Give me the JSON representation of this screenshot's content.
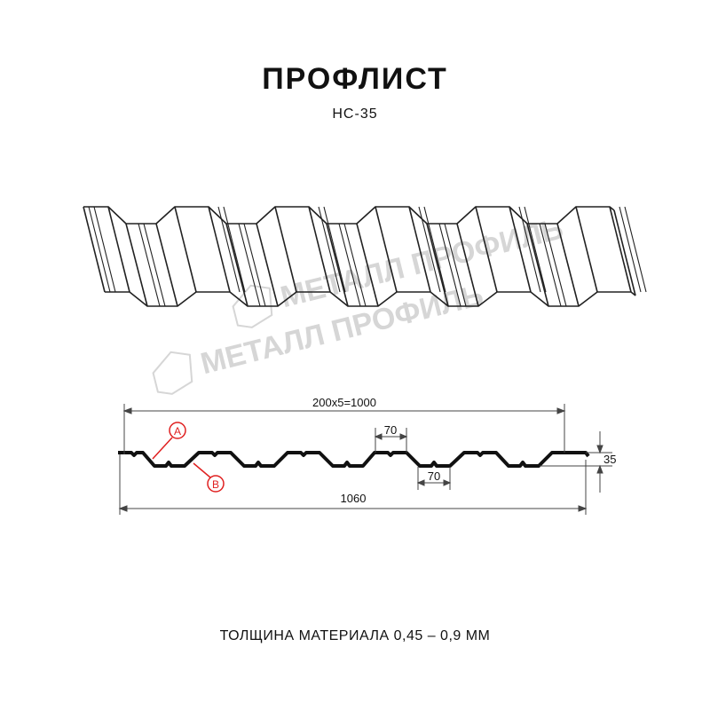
{
  "header": {
    "title": "ПРОФЛИСТ",
    "model": "НС-35"
  },
  "watermark": {
    "text": "МЕТАЛЛ ПРОФИЛЬ"
  },
  "dimensions": {
    "pitch_total": "200x5=1000",
    "full_width": "1060",
    "crest_width": "70",
    "valley_width": "70",
    "height": "35"
  },
  "markers": {
    "a": "A",
    "b": "B",
    "color": "#e02020"
  },
  "footer": {
    "thickness": "ТОЛЩИНА МАТЕРИАЛА 0,45 – 0,9 ММ"
  }
}
